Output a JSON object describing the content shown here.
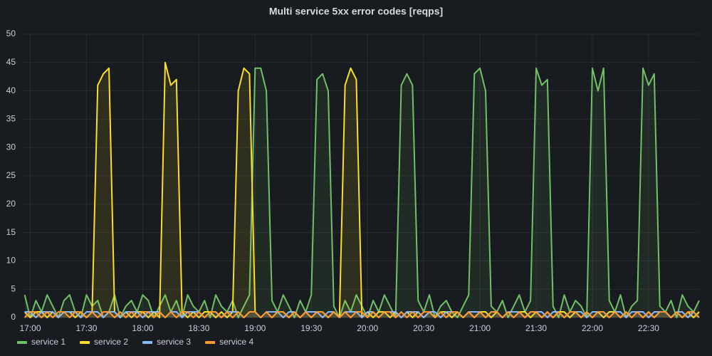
{
  "chart_data": {
    "type": "line",
    "title": "Multi service 5xx error codes [reqps]",
    "x_start": "16:57",
    "x_step_minutes": 3,
    "xlim": [
      "16:56",
      "22:57"
    ],
    "xticks": [
      "17:00",
      "17:30",
      "18:00",
      "18:30",
      "19:00",
      "19:30",
      "20:00",
      "20:30",
      "21:00",
      "21:30",
      "22:00",
      "22:30"
    ],
    "ylim": [
      0,
      50
    ],
    "yticks": [
      0,
      5,
      10,
      15,
      20,
      25,
      30,
      35,
      40,
      45,
      50
    ],
    "grid": true,
    "legend": "bottom",
    "series": [
      {
        "name": "service 1",
        "color": "#73bf69",
        "values": [
          4,
          0,
          3,
          1,
          4,
          2,
          0,
          3,
          4,
          1,
          0,
          4,
          2,
          3,
          0,
          1,
          4,
          0,
          2,
          3,
          1,
          4,
          3,
          0,
          2,
          4,
          1,
          3,
          0,
          4,
          2,
          1,
          3,
          0,
          4,
          2,
          1,
          3,
          0,
          2,
          4,
          44,
          44,
          40,
          3,
          1,
          4,
          2,
          0,
          3,
          1,
          4,
          42,
          43,
          40,
          2,
          0,
          3,
          1,
          4,
          2,
          0,
          3,
          1,
          4,
          2,
          0,
          41,
          43,
          41,
          3,
          1,
          4,
          0,
          2,
          3,
          1,
          0,
          2,
          4,
          43,
          44,
          40,
          2,
          1,
          3,
          0,
          2,
          4,
          1,
          3,
          44,
          41,
          42,
          2,
          0,
          4,
          1,
          3,
          2,
          0,
          44,
          40,
          44,
          3,
          1,
          4,
          0,
          2,
          3,
          44,
          41,
          43,
          2,
          1,
          3,
          0,
          4,
          2,
          1,
          3
        ]
      },
      {
        "name": "service 2",
        "color": "#fade2a",
        "values": [
          1,
          0,
          1,
          1,
          0,
          1,
          0,
          1,
          1,
          0,
          1,
          0,
          1,
          41,
          43,
          44,
          1,
          0,
          1,
          0,
          1,
          1,
          0,
          1,
          0,
          45,
          41,
          42,
          1,
          0,
          1,
          0,
          1,
          1,
          0,
          1,
          0,
          1,
          40,
          44,
          43,
          1,
          0,
          1,
          0,
          1,
          1,
          0,
          1,
          0,
          1,
          0,
          1,
          1,
          0,
          1,
          0,
          41,
          44,
          42,
          0,
          1,
          0,
          1,
          1,
          0,
          1,
          0,
          1,
          0,
          1,
          0,
          1,
          0,
          1,
          1,
          0,
          1,
          0,
          1,
          0,
          1,
          1,
          0,
          1,
          0,
          1,
          0,
          1,
          1,
          0,
          1,
          0,
          1,
          0,
          1,
          1,
          0,
          1,
          0,
          1,
          0,
          1,
          0,
          1,
          1,
          0,
          1,
          0,
          1,
          0,
          1,
          0,
          1,
          1,
          0,
          1,
          0,
          1,
          0,
          1
        ]
      },
      {
        "name": "service 3",
        "color": "#8ab8ff",
        "values": [
          1,
          1,
          0,
          1,
          1,
          1,
          0,
          1,
          1,
          1,
          0,
          1,
          1,
          1,
          0,
          1,
          1,
          0,
          1,
          1,
          1,
          0,
          1,
          1,
          1,
          0,
          1,
          1,
          0,
          1,
          1,
          1,
          0,
          1,
          1,
          0,
          1,
          1,
          1,
          0,
          1,
          1,
          0,
          1,
          1,
          1,
          0,
          1,
          1,
          0,
          1,
          1,
          1,
          0,
          1,
          1,
          0,
          1,
          1,
          1,
          0,
          1,
          1,
          0,
          1,
          1,
          1,
          0,
          1,
          1,
          1,
          0,
          1,
          1,
          0,
          1,
          1,
          1,
          0,
          1,
          1,
          1,
          0,
          1,
          1,
          0,
          1,
          1,
          1,
          0,
          1,
          1,
          1,
          0,
          1,
          1,
          0,
          1,
          1,
          1,
          0,
          1,
          1,
          1,
          0,
          1,
          1,
          0,
          1,
          1,
          1,
          0,
          1,
          1,
          1,
          0,
          1,
          1,
          0,
          1,
          0
        ]
      },
      {
        "name": "service 4",
        "color": "#ff9830",
        "values": [
          0,
          1,
          1,
          0,
          1,
          0,
          1,
          1,
          0,
          1,
          1,
          0,
          1,
          0,
          1,
          1,
          0,
          1,
          0,
          1,
          0,
          1,
          1,
          0,
          1,
          0,
          1,
          0,
          1,
          1,
          0,
          1,
          0,
          1,
          1,
          0,
          1,
          0,
          1,
          0,
          1,
          1,
          0,
          1,
          0,
          1,
          1,
          0,
          1,
          0,
          1,
          0,
          1,
          1,
          0,
          1,
          0,
          1,
          0,
          1,
          1,
          0,
          1,
          0,
          1,
          1,
          0,
          1,
          0,
          1,
          0,
          1,
          1,
          0,
          1,
          0,
          1,
          1,
          0,
          1,
          0,
          1,
          0,
          1,
          1,
          0,
          1,
          0,
          1,
          0,
          1,
          1,
          0,
          1,
          0,
          1,
          0,
          1,
          1,
          0,
          1,
          0,
          1,
          1,
          0,
          1,
          0,
          1,
          0,
          1,
          0,
          1,
          0,
          1,
          1,
          0,
          1,
          0,
          1,
          1,
          0
        ]
      }
    ]
  }
}
